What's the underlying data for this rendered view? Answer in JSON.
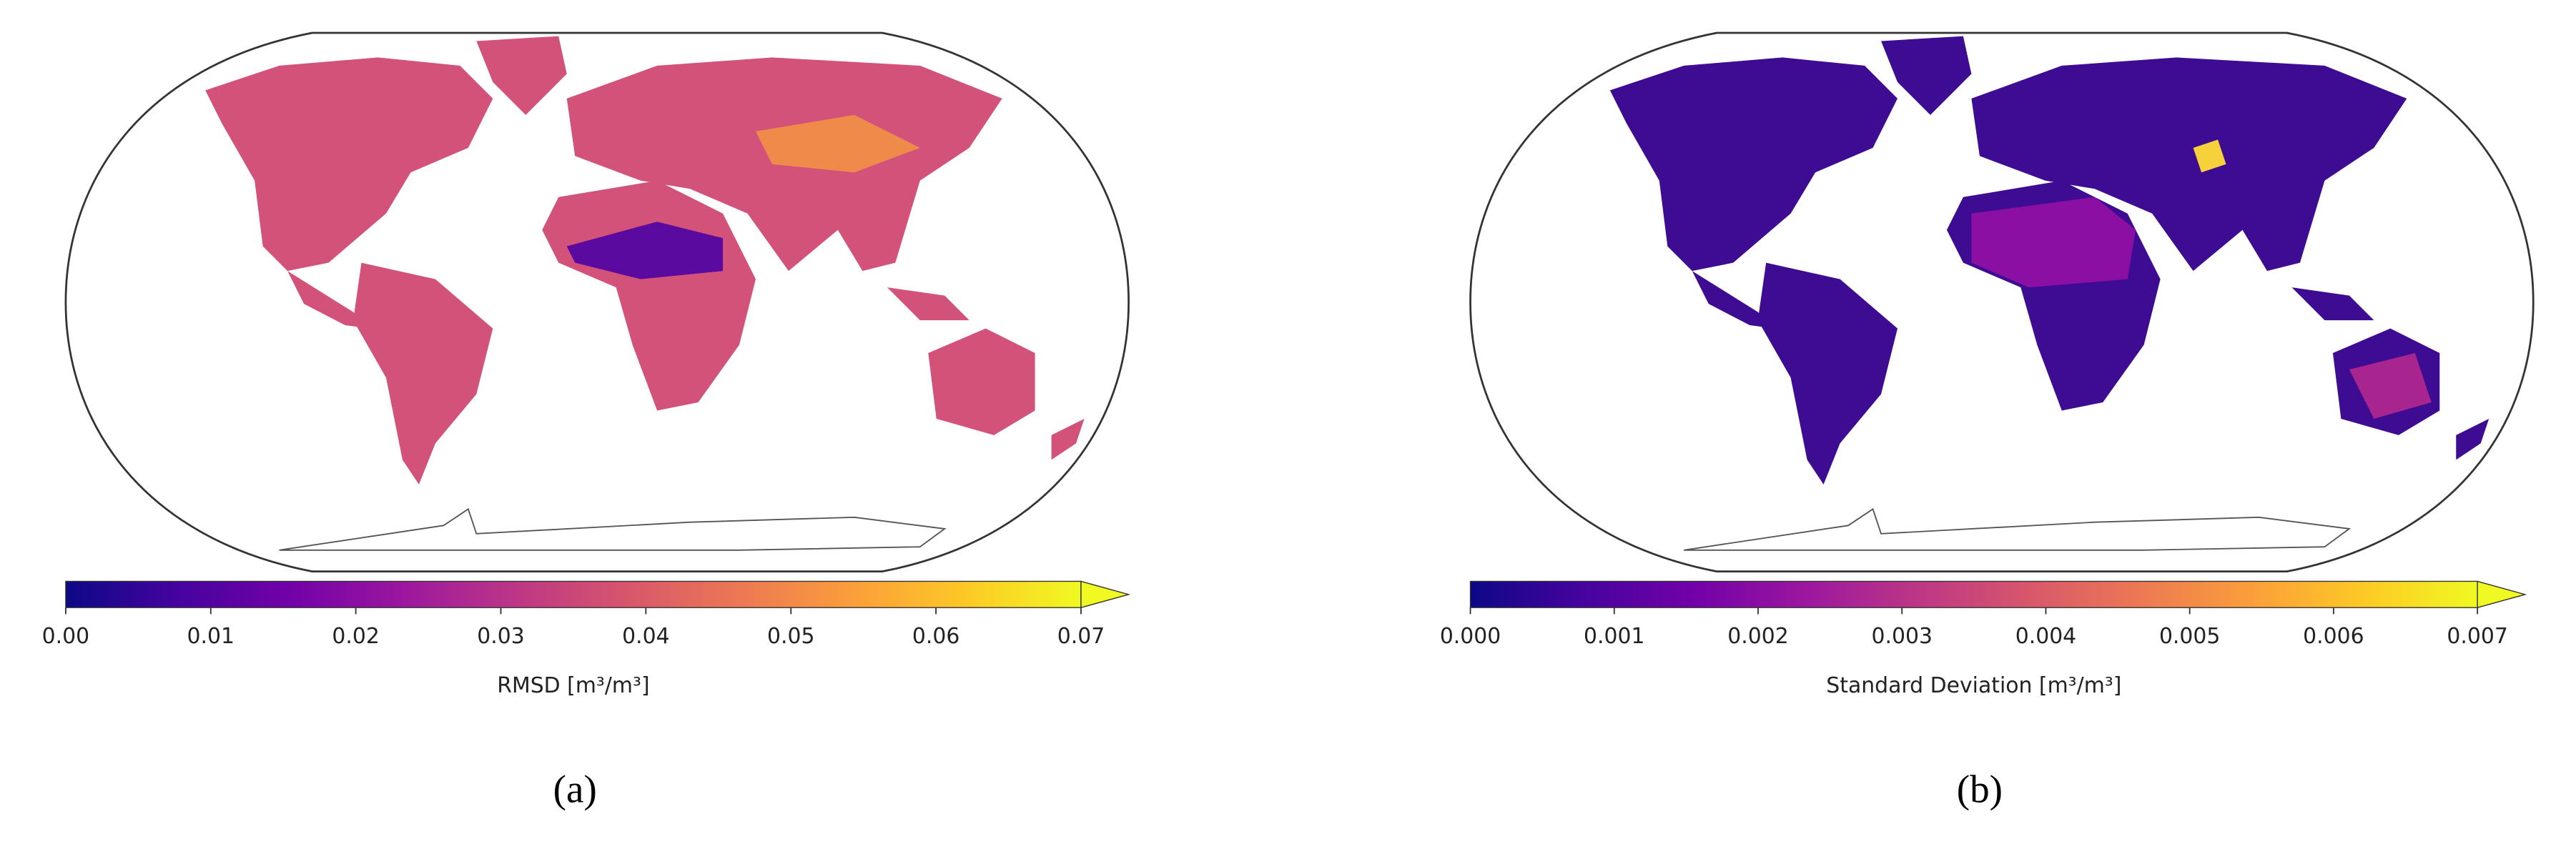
{
  "panels": [
    {
      "label": "(a)",
      "colorbar": {
        "label": "RMSD [m³/m³]",
        "cmap": "plasma",
        "extend": "max",
        "lim": [
          0,
          0.07
        ],
        "ticks": [
          {
            "value": 0,
            "label": "0.00"
          },
          0.01,
          0.02,
          0.03,
          0.04,
          0.05,
          0.06,
          0.07
        ]
      }
    },
    {
      "label": "(b)",
      "colorbar": {
        "label": "Standard Deviation [m³/m³]",
        "cmap": "plasma",
        "extend": "max",
        "lim": [
          0,
          0.007
        ],
        "ticks": [
          {
            "value": 0,
            "label": "0.000"
          },
          0.001,
          0.002,
          0.003,
          0.004,
          0.005,
          0.006,
          0.007
        ]
      }
    }
  ]
}
